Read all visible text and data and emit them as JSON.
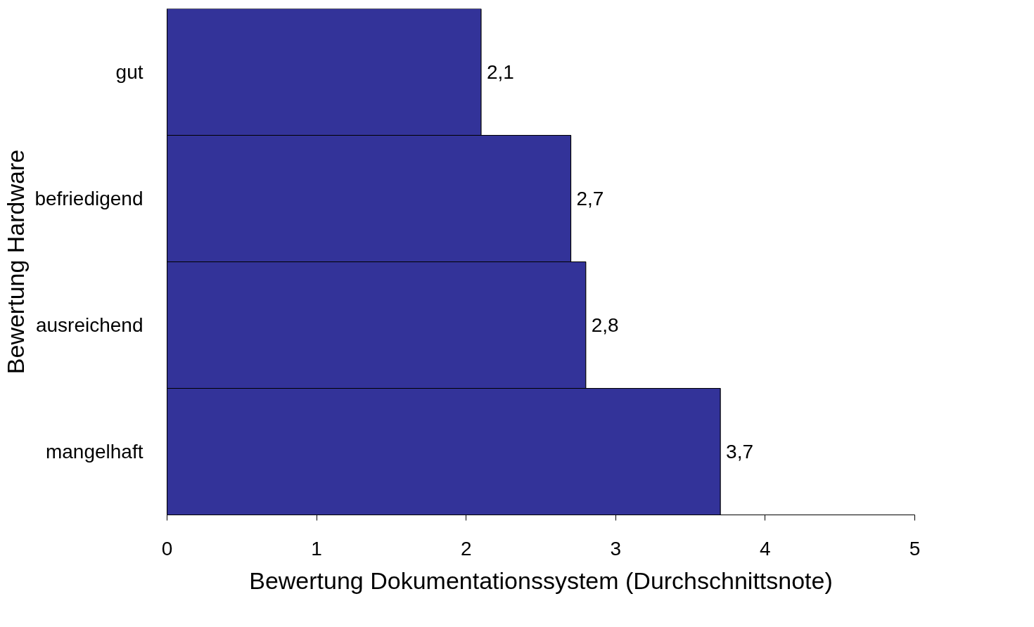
{
  "chart_data": {
    "type": "bar",
    "orientation": "horizontal",
    "xlabel": "Bewertung Dokumentationssystem (Durchschnittsnote)",
    "ylabel": "Bewertung Hardware",
    "categories": [
      "gut",
      "befriedigend",
      "ausreichend",
      "mangelhaft"
    ],
    "values": [
      2.1,
      2.7,
      2.8,
      3.7
    ],
    "value_labels": [
      "2,1",
      "2,7",
      "2,8",
      "3,7"
    ],
    "color": "#333399",
    "xlim": [
      0,
      5
    ],
    "xticks": [
      0,
      1,
      2,
      3,
      4,
      5
    ],
    "grid": false
  }
}
